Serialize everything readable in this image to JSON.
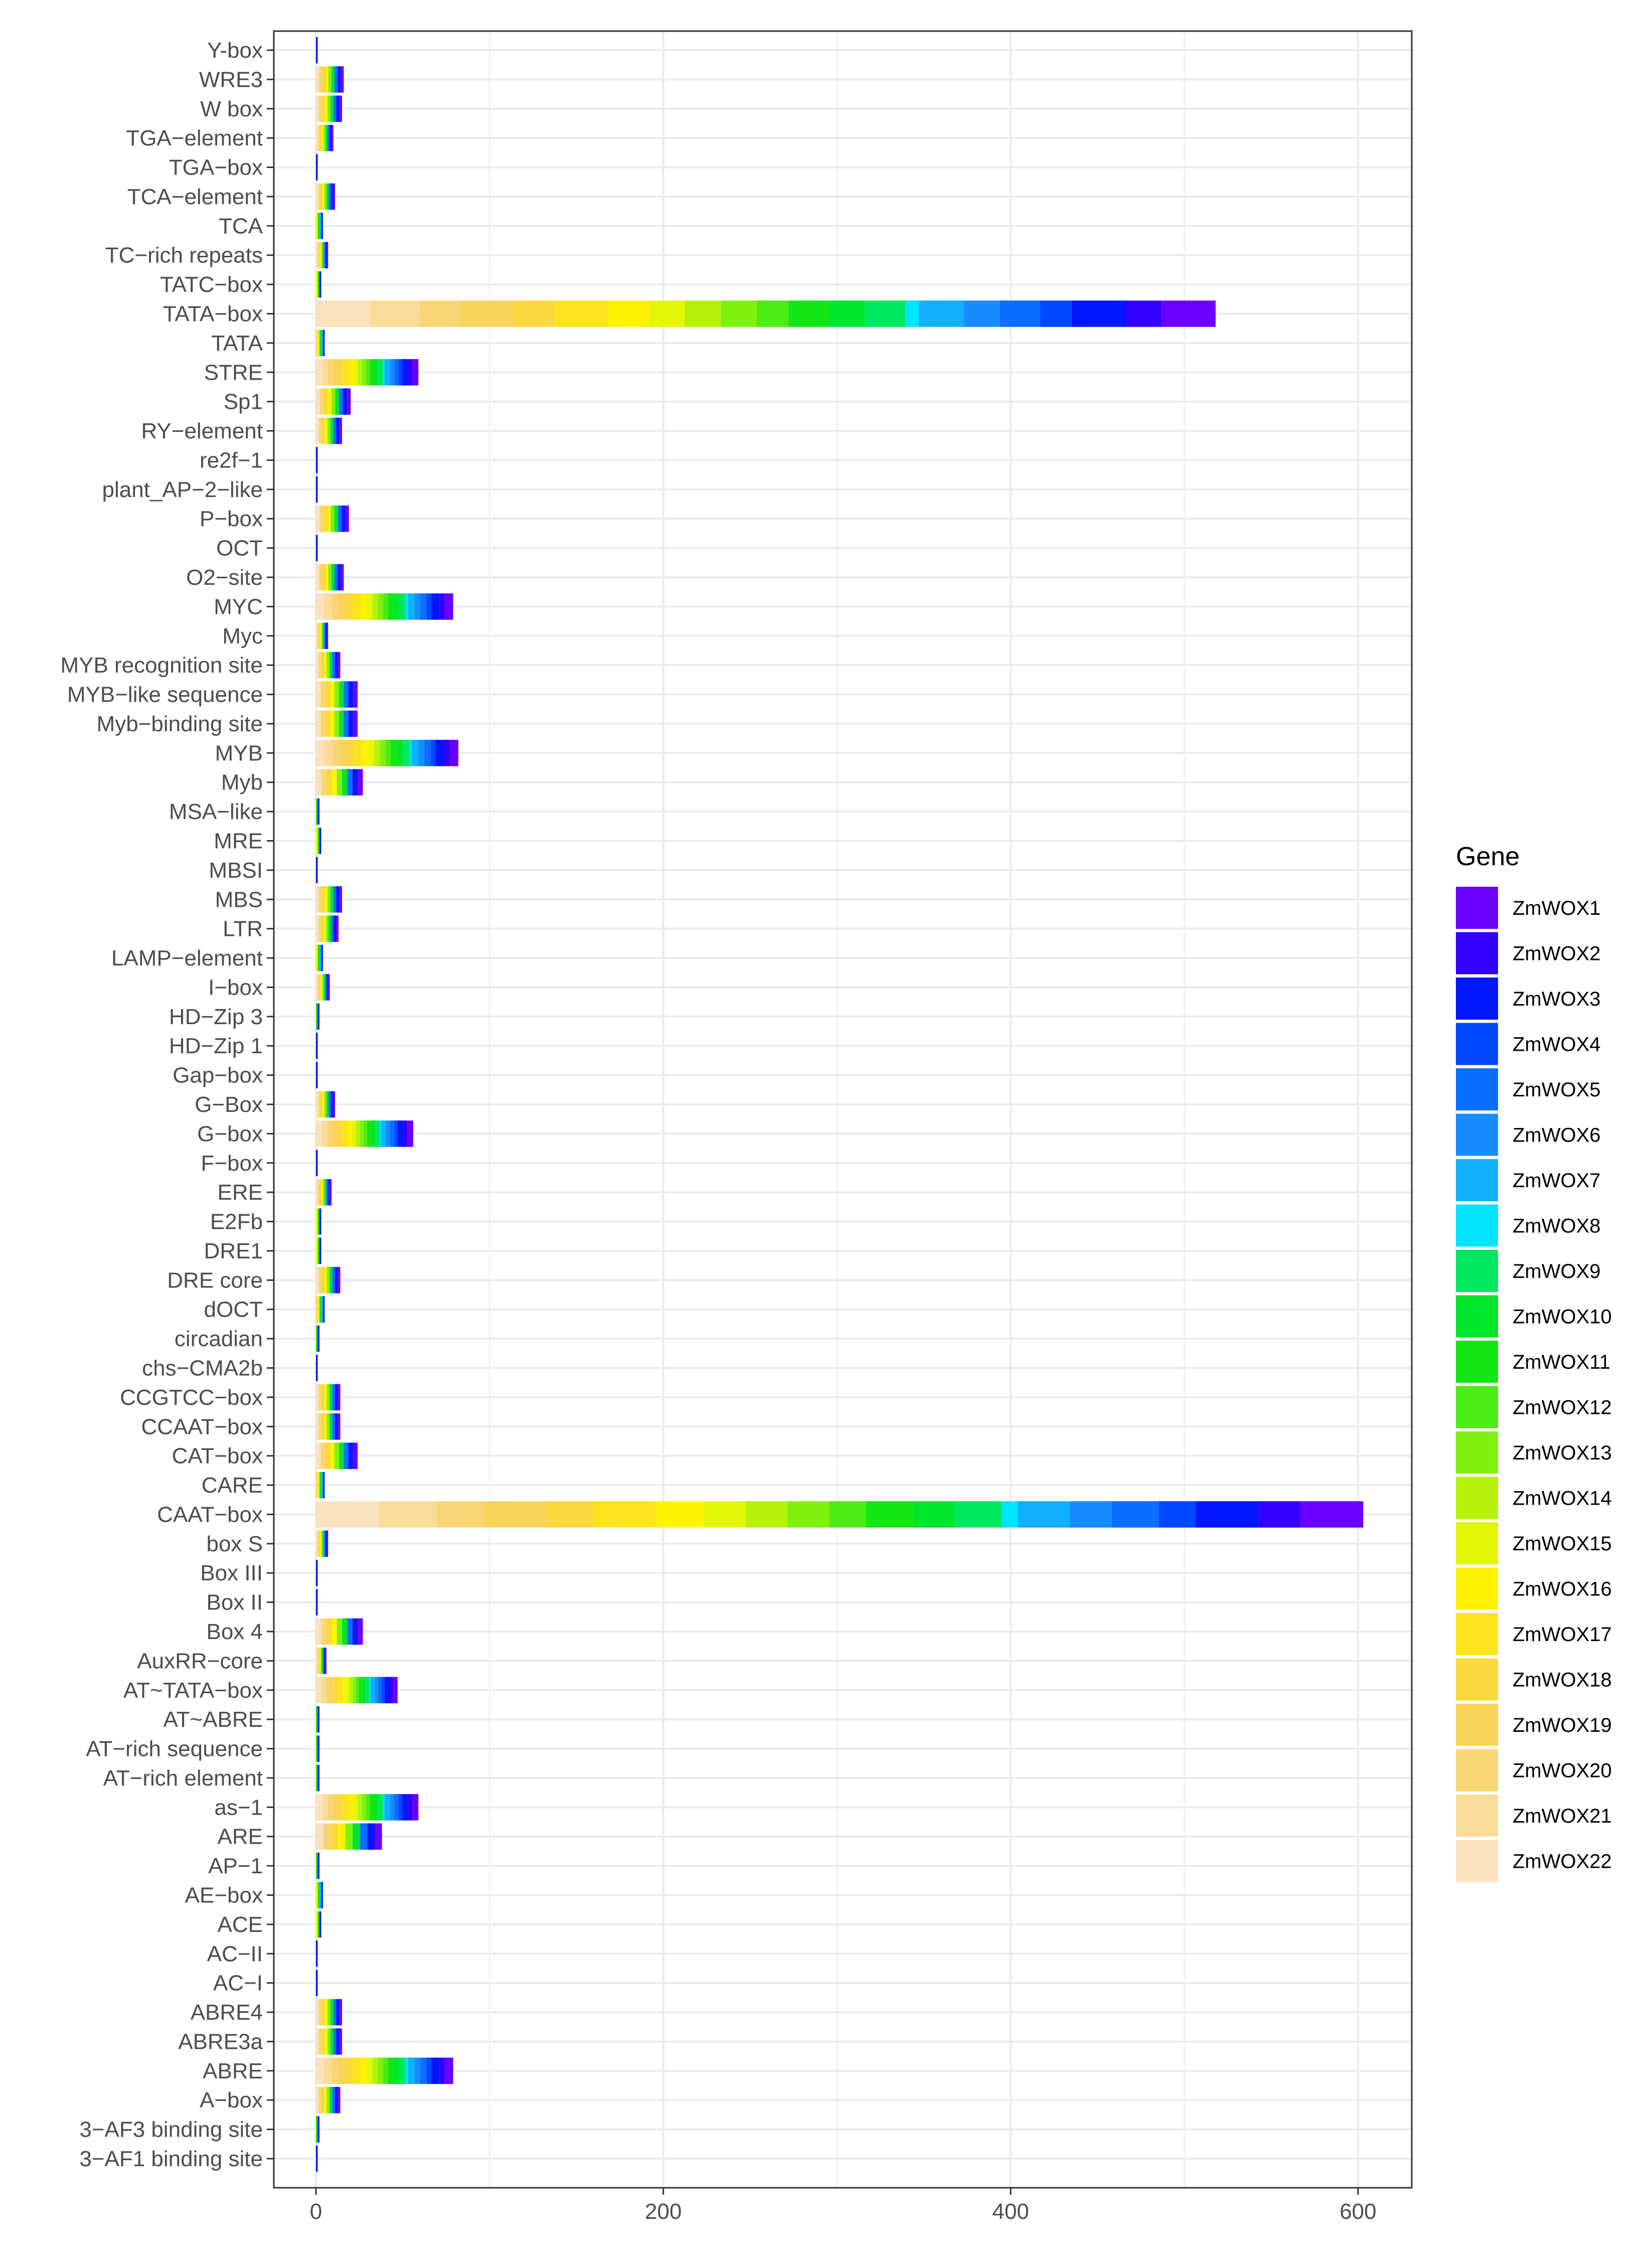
{
  "chart_data": {
    "type": "bar",
    "orientation": "horizontal",
    "stacked": true,
    "title": "",
    "xlabel": "",
    "ylabel": "",
    "xlim": [
      0,
      630
    ],
    "x_ticks": [
      0,
      200,
      400,
      600
    ],
    "x_tick_labels": [
      "0",
      "200",
      "400",
      "600"
    ],
    "grid": true,
    "legend_position": "right",
    "legend_title": "Gene",
    "series": [
      {
        "name": "ZmWOX1",
        "color": "#6a00ff"
      },
      {
        "name": "ZmWOX2",
        "color": "#3300ff"
      },
      {
        "name": "ZmWOX3",
        "color": "#0016ff"
      },
      {
        "name": "ZmWOX4",
        "color": "#0048ff"
      },
      {
        "name": "ZmWOX5",
        "color": "#0a6eff"
      },
      {
        "name": "ZmWOX6",
        "color": "#168cff"
      },
      {
        "name": "ZmWOX7",
        "color": "#10b0ff"
      },
      {
        "name": "ZmWOX8",
        "color": "#00e4ff"
      },
      {
        "name": "ZmWOX9",
        "color": "#00e860"
      },
      {
        "name": "ZmWOX10",
        "color": "#00e62a"
      },
      {
        "name": "ZmWOX11",
        "color": "#14e614"
      },
      {
        "name": "ZmWOX12",
        "color": "#4cec14"
      },
      {
        "name": "ZmWOX13",
        "color": "#80f00e"
      },
      {
        "name": "ZmWOX14",
        "color": "#b4f20a"
      },
      {
        "name": "ZmWOX15",
        "color": "#e4f608"
      },
      {
        "name": "ZmWOX16",
        "color": "#fff300"
      },
      {
        "name": "ZmWOX17",
        "color": "#fde31e"
      },
      {
        "name": "ZmWOX18",
        "color": "#fbd83e"
      },
      {
        "name": "ZmWOX19",
        "color": "#f9d45a"
      },
      {
        "name": "ZmWOX20",
        "color": "#f8d676"
      },
      {
        "name": "ZmWOX21",
        "color": "#f8dc98"
      },
      {
        "name": "ZmWOX22",
        "color": "#f9e2bd"
      }
    ],
    "categories": [
      "Y-box",
      "WRE3",
      "W box",
      "TGA−element",
      "TGA−box",
      "TCA−element",
      "TCA",
      "TC−rich repeats",
      "TATC−box",
      "TATA−box",
      "TATA",
      "STRE",
      "Sp1",
      "RY−element",
      "re2f−1",
      "plant_AP−2−like",
      "P−box",
      "OCT",
      "O2−site",
      "MYC",
      "Myc",
      "MYB recognition site",
      "MYB−like sequence",
      "Myb−binding site",
      "MYB",
      "Myb",
      "MSA−like",
      "MRE",
      "MBSI",
      "MBS",
      "LTR",
      "LAMP−element",
      "I−box",
      "HD−Zip 3",
      "HD−Zip 1",
      "Gap−box",
      "G−Box",
      "G−box",
      "F−box",
      "ERE",
      "E2Fb",
      "DRE1",
      "DRE core",
      "dOCT",
      "circadian",
      "chs−CMA2b",
      "CCGTCC−box",
      "CCAAT−box",
      "CAT−box",
      "CARE",
      "CAAT−box",
      "box S",
      "Box III",
      "Box II",
      "Box 4",
      "AuxRR−core",
      "AT~TATA−box",
      "AT~ABRE",
      "AT−rich sequence",
      "AT−rich element",
      "as−1",
      "ARE",
      "AP−1",
      "AE−box",
      "ACE",
      "AC−II",
      "AC−I",
      "ABRE4",
      "ABRE3a",
      "ABRE",
      "A−box",
      "3−AF3 binding site",
      "3−AF1 binding site"
    ],
    "totals": [
      1,
      16,
      15,
      10,
      1,
      11,
      4,
      7,
      3,
      518,
      5,
      59,
      20,
      15,
      1,
      1,
      19,
      1,
      16,
      79,
      7,
      14,
      24,
      24,
      82,
      27,
      2,
      3,
      1,
      15,
      13,
      4,
      8,
      2,
      1,
      1,
      11,
      56,
      1,
      9,
      3,
      3,
      14,
      5,
      2,
      1,
      14,
      14,
      24,
      5,
      603,
      7,
      1,
      1,
      27,
      6,
      47,
      2,
      2,
      2,
      59,
      38,
      2,
      4,
      3,
      1,
      1,
      15,
      15,
      79,
      14,
      2,
      1
    ]
  },
  "legend": {
    "title": "Gene",
    "entries": [
      "ZmWOX1",
      "ZmWOX2",
      "ZmWOX3",
      "ZmWOX4",
      "ZmWOX5",
      "ZmWOX6",
      "ZmWOX7",
      "ZmWOX8",
      "ZmWOX9",
      "ZmWOX10",
      "ZmWOX11",
      "ZmWOX12",
      "ZmWOX13",
      "ZmWOX14",
      "ZmWOX15",
      "ZmWOX16",
      "ZmWOX17",
      "ZmWOX18",
      "ZmWOX19",
      "ZmWOX20",
      "ZmWOX21",
      "ZmWOX22"
    ]
  }
}
